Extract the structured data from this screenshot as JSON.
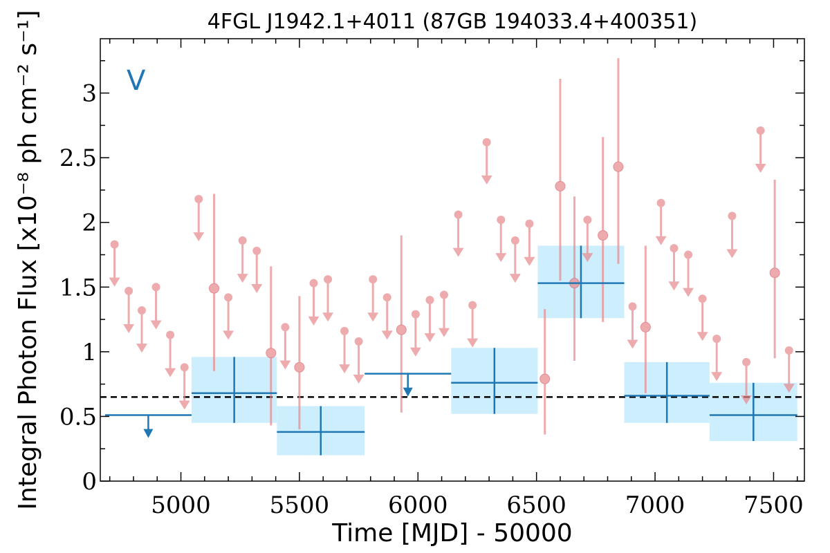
{
  "chart_data": {
    "type": "scatter",
    "title": "4FGL J1942.1+4011 (87GB 194033.4+400351)",
    "xlabel": "Time [MJD] - 50000",
    "ylabel": "Integral Photon Flux [x10⁻⁸ ph cm⁻² s⁻¹]",
    "band_label": "V",
    "xlim": [
      4660,
      7630
    ],
    "ylim": [
      0,
      3.42
    ],
    "x_ticks": [
      5000,
      5500,
      6000,
      6500,
      7000,
      7500
    ],
    "x_tick_labels": [
      "5000",
      "5500",
      "6000",
      "6500",
      "7000",
      "7500"
    ],
    "y_ticks": [
      0,
      0.5,
      1,
      1.5,
      2,
      2.5,
      3
    ],
    "y_tick_labels": [
      "0",
      "0.5",
      "1",
      "1.5",
      "2",
      "2.5",
      "3"
    ],
    "mean_flux": 0.65,
    "colors": {
      "short_bins": "#e8888c",
      "long_bins": "#1f77b4",
      "long_bin_band": "#cdeefd",
      "mean_line": "#000000"
    },
    "series": [
      {
        "kind": "short-timescale",
        "detections": [
          {
            "x": 5140,
            "y": 1.49,
            "lo": 0.85,
            "hi": 2.22
          },
          {
            "x": 5380,
            "y": 0.99,
            "lo": 0.43,
            "hi": 1.66
          },
          {
            "x": 5500,
            "y": 0.88,
            "lo": 0.4,
            "hi": 1.43
          },
          {
            "x": 5930,
            "y": 1.17,
            "lo": 0.53,
            "hi": 1.9
          },
          {
            "x": 6535,
            "y": 0.79,
            "lo": 0.36,
            "hi": 1.33
          },
          {
            "x": 6600,
            "y": 2.28,
            "lo": 1.55,
            "hi": 3.11
          },
          {
            "x": 6660,
            "y": 1.53,
            "lo": 0.93,
            "hi": 2.2
          },
          {
            "x": 6780,
            "y": 1.9,
            "lo": 1.23,
            "hi": 2.66
          },
          {
            "x": 6845,
            "y": 2.43,
            "lo": 1.68,
            "hi": 3.27
          },
          {
            "x": 6960,
            "y": 1.19,
            "lo": 0.68,
            "hi": 1.82
          },
          {
            "x": 7505,
            "y": 1.61,
            "lo": 0.95,
            "hi": 2.33
          }
        ],
        "upper_limits": [
          {
            "x": 4720,
            "y": 1.83
          },
          {
            "x": 4780,
            "y": 1.47
          },
          {
            "x": 4835,
            "y": 1.32
          },
          {
            "x": 4895,
            "y": 1.5
          },
          {
            "x": 4955,
            "y": 1.13
          },
          {
            "x": 5015,
            "y": 0.88
          },
          {
            "x": 5075,
            "y": 2.18
          },
          {
            "x": 5200,
            "y": 1.42
          },
          {
            "x": 5260,
            "y": 1.86
          },
          {
            "x": 5320,
            "y": 1.78
          },
          {
            "x": 5440,
            "y": 1.19
          },
          {
            "x": 5560,
            "y": 1.53
          },
          {
            "x": 5620,
            "y": 1.56
          },
          {
            "x": 5690,
            "y": 1.16
          },
          {
            "x": 5750,
            "y": 1.08
          },
          {
            "x": 5810,
            "y": 1.56
          },
          {
            "x": 5870,
            "y": 1.42
          },
          {
            "x": 5990,
            "y": 1.29
          },
          {
            "x": 6050,
            "y": 1.4
          },
          {
            "x": 6110,
            "y": 1.44
          },
          {
            "x": 6170,
            "y": 2.06
          },
          {
            "x": 6230,
            "y": 1.36
          },
          {
            "x": 6290,
            "y": 2.62
          },
          {
            "x": 6350,
            "y": 2.02
          },
          {
            "x": 6410,
            "y": 1.86
          },
          {
            "x": 6470,
            "y": 1.99
          },
          {
            "x": 6715,
            "y": 2.02
          },
          {
            "x": 6905,
            "y": 1.35
          },
          {
            "x": 7025,
            "y": 2.15
          },
          {
            "x": 7080,
            "y": 1.8
          },
          {
            "x": 7140,
            "y": 1.75
          },
          {
            "x": 7200,
            "y": 1.41
          },
          {
            "x": 7260,
            "y": 1.1
          },
          {
            "x": 7325,
            "y": 2.05
          },
          {
            "x": 7385,
            "y": 0.92
          },
          {
            "x": 7445,
            "y": 2.71
          },
          {
            "x": 7565,
            "y": 1.01
          }
        ]
      },
      {
        "kind": "long-timescale",
        "detections": [
          {
            "x0": 5045,
            "x1": 5405,
            "y": 0.68,
            "lo": 0.45,
            "hi": 0.96
          },
          {
            "x0": 5405,
            "x1": 5775,
            "y": 0.38,
            "lo": 0.2,
            "hi": 0.58
          },
          {
            "x0": 6140,
            "x1": 6505,
            "y": 0.76,
            "lo": 0.52,
            "hi": 1.03
          },
          {
            "x0": 6505,
            "x1": 6870,
            "y": 1.53,
            "lo": 1.26,
            "hi": 1.82
          },
          {
            "x0": 6870,
            "x1": 7230,
            "y": 0.66,
            "lo": 0.45,
            "hi": 0.92
          },
          {
            "x0": 7230,
            "x1": 7600,
            "y": 0.51,
            "lo": 0.31,
            "hi": 0.76
          }
        ],
        "upper_limits": [
          {
            "x0": 4680,
            "x1": 5045,
            "y": 0.51
          },
          {
            "x0": 5775,
            "x1": 6140,
            "y": 0.83
          }
        ]
      }
    ]
  }
}
